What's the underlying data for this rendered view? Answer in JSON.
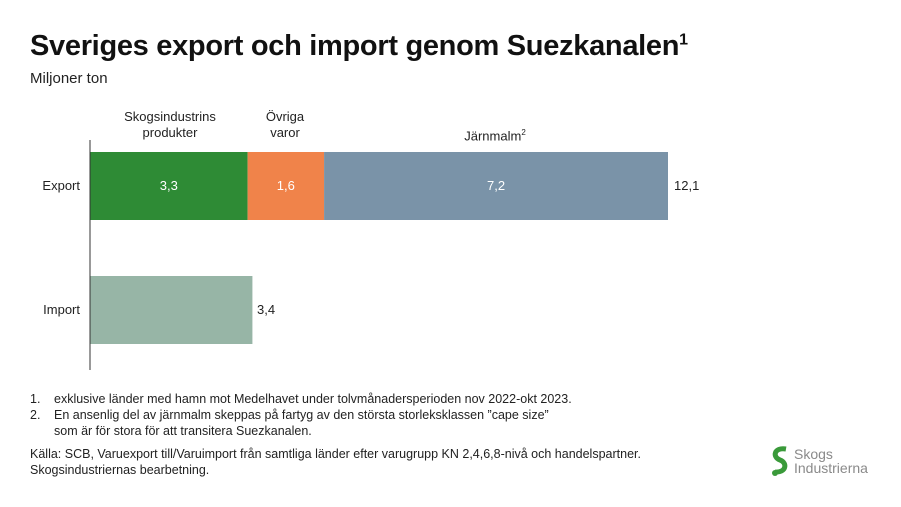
{
  "title": "Sveriges export och import genom Suezkanalen",
  "title_sup": "1",
  "subtitle": "Miljoner ton",
  "chart_data": {
    "type": "bar",
    "orientation": "horizontal",
    "stacked": true,
    "categories": [
      "Export",
      "Import"
    ],
    "series": [
      {
        "name": "Skogsindustrins produkter",
        "values": [
          3.3,
          3.4
        ],
        "color": "#2e8b35",
        "labels": [
          "3,3",
          ""
        ]
      },
      {
        "name": "Övriga varor",
        "values": [
          1.6,
          0
        ],
        "color": "#f0834a",
        "labels": [
          "1,6",
          ""
        ]
      },
      {
        "name": "Järnmalm",
        "name_sup": "2",
        "values": [
          7.2,
          0
        ],
        "color": "#7a93a8",
        "labels": [
          "7,2",
          ""
        ]
      }
    ],
    "import_color": "#97b5a6",
    "totals": [
      "12,1",
      "3,4"
    ],
    "xlim": [
      0,
      12.1
    ]
  },
  "legend_headers": {
    "skog": [
      "Skogsindustrins",
      "produkter"
    ],
    "ovriga": [
      "Övriga",
      "varor"
    ],
    "jarn": "Järnmalm",
    "jarn_sup": "2"
  },
  "notes": [
    {
      "num": "1.",
      "text": "exklusive länder med hamn mot Medelhavet under tolvmånadersperioden nov 2022-okt 2023."
    },
    {
      "num": "2.",
      "text": "En ansenlig del av järnmalm skeppas på fartyg av den största storleksklassen ”cape size” som är för stora för att transitera Suezkanalen."
    }
  ],
  "source": "Källa: SCB, Varuexport till/Varuimport från samtliga länder efter varugrupp KN 2,4,6,8-nivå och handelspartner. Skogsindustriernas bearbetning.",
  "logo": {
    "line1": "Skogs",
    "line2": "Industrierna"
  }
}
